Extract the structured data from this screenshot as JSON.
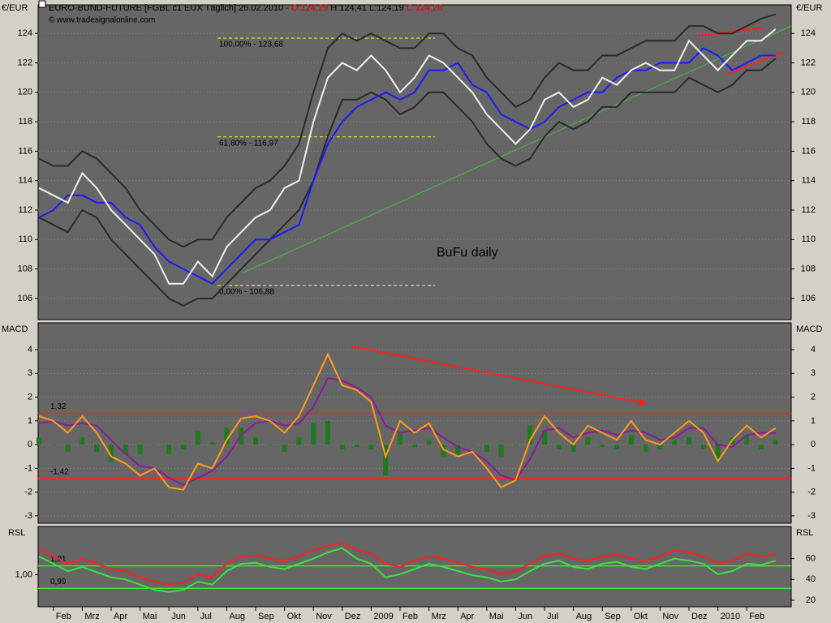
{
  "chart_data": [
    {
      "type": "line",
      "title_parts": [
        "EURO-BUND-FUTURE [FGBL c1 EUX  Täglich] 26.02.2010 - ",
        "O:124,29",
        " H:124,41 L:124,19 ",
        "C:124,26"
      ],
      "source": "© www.tradesignalonline.com",
      "axis_label": "€/EUR",
      "annotation": "BuFu daily",
      "levels": [
        {
          "value": 123.68,
          "label": "100,00% - 123,68"
        },
        {
          "value": 116.97,
          "label": "61,80% - 116,97"
        },
        {
          "value": 106.88,
          "label": "0,00% - 106,88"
        }
      ],
      "ylim": [
        104.56,
        125.94
      ],
      "yticks": [
        106,
        108,
        110,
        112,
        114,
        116,
        118,
        120,
        122,
        124
      ],
      "grid": true,
      "series": [
        {
          "color": "#2a2a2a",
          "values": [
            115.5,
            115,
            115,
            116,
            115.5,
            114.5,
            113.5,
            112,
            111,
            110,
            109.5,
            110,
            110,
            111.5,
            112.5,
            113.5,
            114,
            115,
            116.5,
            120,
            123,
            124,
            123.5,
            124,
            123.5,
            123,
            123,
            124,
            124,
            123,
            122.5,
            121,
            120,
            119,
            119.5,
            121,
            122,
            121.5,
            121.5,
            122.5,
            122.5,
            123,
            123.5,
            123.5,
            123.5,
            124.5,
            124.5,
            124,
            124,
            124.5,
            125,
            125.3
          ]
        },
        {
          "color": "#2a2a2a",
          "values": [
            111.5,
            111,
            110.5,
            112,
            111.5,
            110,
            109,
            108,
            107,
            106,
            105.5,
            106,
            106,
            107,
            108,
            109,
            110,
            111,
            112,
            114,
            117,
            119.5,
            119.5,
            120,
            119.5,
            118.5,
            119,
            120,
            120,
            119,
            118,
            116.5,
            115.5,
            115,
            115.5,
            117,
            118,
            117.5,
            118,
            119,
            119,
            120,
            120,
            120,
            120,
            121,
            120.5,
            120,
            120.5,
            121.5,
            121.5,
            122.3
          ]
        },
        {
          "color": "#1a1aff",
          "values": [
            111.5,
            112,
            113,
            113,
            112.5,
            112.5,
            111.5,
            111,
            109.5,
            108.5,
            108,
            107.5,
            107,
            108,
            109,
            110,
            110,
            110.5,
            111,
            114,
            116.5,
            118,
            119,
            119.5,
            120,
            119.5,
            120,
            121.5,
            121.5,
            122,
            120.5,
            120,
            118.5,
            118,
            117.5,
            118,
            119,
            119.5,
            120,
            120,
            121,
            121.5,
            121.5,
            122,
            122,
            122,
            123,
            122.5,
            121.5,
            122,
            122.5,
            122.5
          ]
        },
        {
          "color": "#f0f0f0",
          "values": [
            113.5,
            113,
            112.5,
            114.5,
            113.5,
            112,
            111,
            110,
            109,
            107,
            107,
            108.5,
            107.5,
            109.5,
            110.5,
            111.5,
            112,
            113.5,
            114,
            118,
            121,
            122,
            121.5,
            122.5,
            121.5,
            120,
            121,
            122.5,
            122,
            121,
            120,
            118.5,
            117.5,
            116.5,
            117.5,
            119.5,
            120,
            119,
            119.5,
            121,
            120.5,
            121.5,
            122,
            121.5,
            121.5,
            123.5,
            122.5,
            121.5,
            122.5,
            123.5,
            123.5,
            124.3
          ]
        }
      ]
    },
    {
      "type": "line",
      "axis_label": "MACD",
      "ylim": [
        -3.31,
        5.13
      ],
      "yticks": [
        -3,
        -2,
        -1,
        0,
        1,
        2,
        3,
        4
      ],
      "grid": true,
      "levels": [
        {
          "value": 1.32,
          "label": "1,32"
        },
        {
          "value": -1.42,
          "label": "-1,42"
        }
      ],
      "series": [
        {
          "style": "bar",
          "color": "#1f7a1f",
          "values": [
            0.3,
            0,
            -0.3,
            0.3,
            -0.3,
            -0.7,
            -0.4,
            -0.4,
            0,
            -0.4,
            -0.2,
            0.6,
            0.1,
            0.7,
            0.7,
            0.3,
            0,
            -0.3,
            0.3,
            0.9,
            1.0,
            -0.2,
            -0.1,
            -0.2,
            -1.3,
            0.5,
            -0.1,
            0.2,
            -0.5,
            -0.4,
            0,
            -0.3,
            -0.5,
            0,
            0.8,
            0.6,
            -0.2,
            -0.3,
            0.3,
            -0.1,
            -0.2,
            0.4,
            -0.3,
            -0.2,
            0.2,
            0.3,
            -0.2,
            -0.7,
            0.3,
            0.4,
            -0.2,
            0.2
          ]
        },
        {
          "color": "#8b1a9b",
          "values": [
            0.9,
            1.0,
            0.8,
            0.9,
            0.8,
            0.2,
            -0.4,
            -0.9,
            -1.0,
            -1.4,
            -1.7,
            -1.4,
            -1.1,
            -0.5,
            0.4,
            0.9,
            1.0,
            0.8,
            0.9,
            1.6,
            2.8,
            2.7,
            2.4,
            2.0,
            0.8,
            0.5,
            0.6,
            0.7,
            0.3,
            -0.1,
            -0.3,
            -0.7,
            -1.3,
            -1.5,
            -0.6,
            0.6,
            0.7,
            0.3,
            0.5,
            0.6,
            0.4,
            0.6,
            0.5,
            0.2,
            0.3,
            0.7,
            0.7,
            0.0,
            -0.1,
            0.4,
            0.5,
            0.5
          ]
        },
        {
          "color": "#ff9a1a",
          "values": [
            1.2,
            1.0,
            0.5,
            1.2,
            0.5,
            -0.5,
            -0.8,
            -1.3,
            -1.0,
            -1.8,
            -1.9,
            -0.8,
            -1.0,
            0.2,
            1.1,
            1.2,
            1.0,
            0.5,
            1.2,
            2.5,
            3.8,
            2.5,
            2.3,
            1.8,
            -0.5,
            1.0,
            0.5,
            0.9,
            -0.2,
            -0.5,
            -0.3,
            -1.0,
            -1.8,
            -1.5,
            0.2,
            1.2,
            0.5,
            0.0,
            0.8,
            0.5,
            0.2,
            1.0,
            0.2,
            0.0,
            0.5,
            1.0,
            0.5,
            -0.7,
            0.2,
            0.8,
            0.3,
            0.7
          ]
        }
      ]
    },
    {
      "type": "line",
      "axis_label": "RSL",
      "categories": [
        null,
        "Feb",
        null,
        "Mrz",
        null,
        "Apr",
        null,
        "Mai",
        null,
        "Jun",
        null,
        "Jul",
        null,
        "Aug",
        null,
        "Sep",
        null,
        "Okt",
        null,
        "Nov",
        null,
        "Dez",
        null,
        "2009",
        null,
        "Feb",
        null,
        "Mrz",
        null,
        "Apr",
        null,
        "Mai",
        null,
        "Jun",
        null,
        "Jul",
        null,
        "Aug",
        null,
        "Sep",
        null,
        "Okt",
        null,
        "Nov",
        null,
        "Dez",
        null,
        "2010",
        null,
        "Feb",
        null,
        null
      ],
      "ylim": [
        13.8,
        90.8
      ],
      "yticks": [
        20,
        40,
        60
      ],
      "y2lim": [
        0.98,
        1.03
      ],
      "y2ticks": [
        {
          "value": 1.0,
          "label": "1,00"
        }
      ],
      "levels": [
        {
          "value": 53,
          "label": "1,01"
        },
        {
          "value": 31.5,
          "label": "0,99"
        }
      ],
      "series": [
        {
          "color": "#ff2020",
          "values": [
            70,
            62,
            55,
            60,
            55,
            50,
            48,
            42,
            38,
            35,
            37,
            45,
            42,
            55,
            62,
            63,
            60,
            58,
            62,
            68,
            72,
            75,
            68,
            65,
            55,
            52,
            58,
            62,
            60,
            56,
            52,
            50,
            45,
            48,
            55,
            62,
            65,
            60,
            58,
            62,
            64,
            60,
            58,
            62,
            68,
            66,
            62,
            55,
            58,
            65,
            62,
            64
          ]
        },
        {
          "color": "#40e040",
          "values": [
            62,
            55,
            48,
            52,
            47,
            42,
            40,
            35,
            30,
            28,
            30,
            38,
            35,
            48,
            55,
            56,
            52,
            50,
            55,
            60,
            66,
            70,
            60,
            55,
            42,
            45,
            50,
            55,
            52,
            48,
            44,
            42,
            38,
            40,
            48,
            55,
            58,
            52,
            50,
            55,
            57,
            52,
            50,
            55,
            60,
            58,
            55,
            45,
            48,
            55,
            54,
            58
          ]
        }
      ]
    }
  ]
}
